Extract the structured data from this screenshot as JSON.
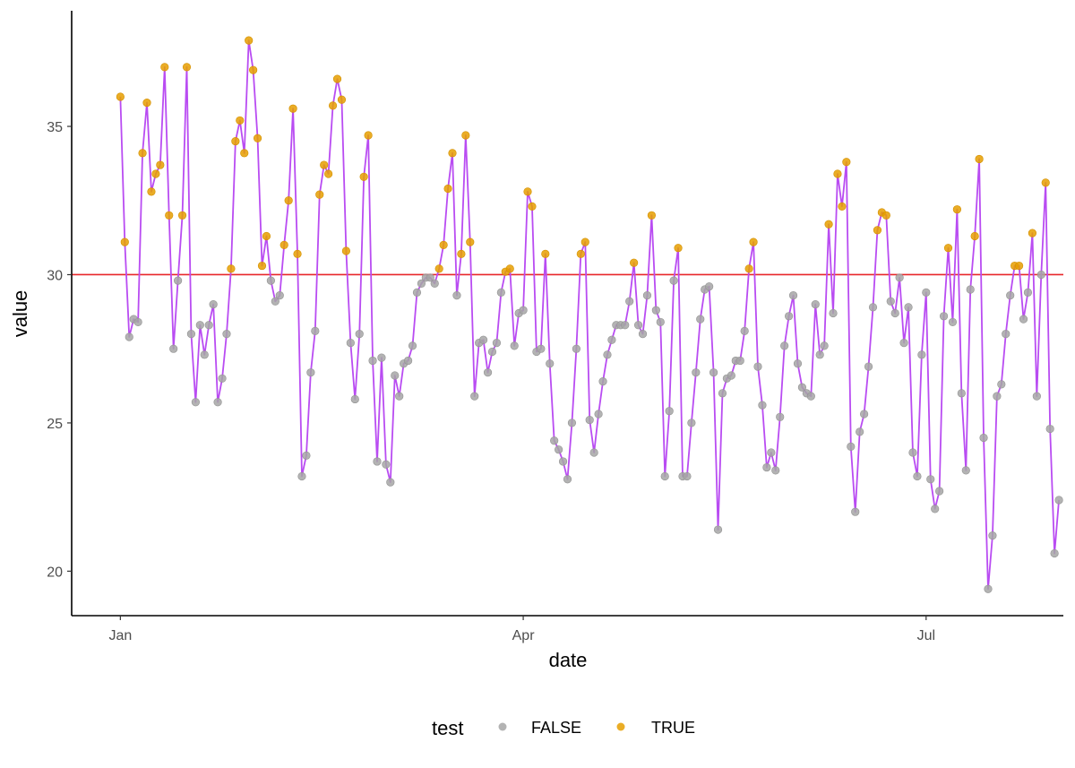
{
  "chart_data": {
    "type": "line",
    "xlabel": "date",
    "ylabel": "value",
    "x_ticks": [
      "Jan",
      "Apr",
      "Jul"
    ],
    "x_tick_dates": [
      "2000-01-01",
      "2000-04-01",
      "2000-07-01"
    ],
    "x_range": [
      "1999-12-21",
      "2000-08-01"
    ],
    "ylim": [
      18.5,
      38.9
    ],
    "y_ticks": [
      20,
      25,
      30,
      35
    ],
    "threshold": 30,
    "grid": false,
    "legend": {
      "title": "test",
      "position": "bottom",
      "entries": [
        {
          "label": "FALSE",
          "color": "#a6a6a6"
        },
        {
          "label": "TRUE",
          "color": "#e69f00"
        }
      ]
    },
    "colors": {
      "line": "#b94cf2",
      "threshold": "#e8272a",
      "false": "#a6a6a6",
      "true": "#e69f00"
    },
    "start_date": "2000-01-01",
    "values": [
      36.0,
      31.1,
      27.9,
      28.5,
      28.4,
      34.1,
      35.8,
      32.8,
      33.4,
      33.7,
      37.0,
      32.0,
      27.5,
      29.8,
      32.0,
      37.0,
      28.0,
      25.7,
      28.3,
      27.3,
      28.3,
      29.0,
      25.7,
      26.5,
      28.0,
      30.2,
      34.5,
      35.2,
      34.1,
      37.9,
      36.9,
      34.6,
      30.3,
      31.3,
      29.8,
      29.1,
      29.3,
      31.0,
      32.5,
      35.6,
      30.7,
      23.2,
      23.9,
      26.7,
      28.1,
      32.7,
      33.7,
      33.4,
      35.7,
      36.6,
      35.9,
      30.8,
      27.7,
      25.8,
      28.0,
      33.3,
      34.7,
      27.1,
      23.7,
      27.2,
      23.6,
      23.0,
      26.6,
      25.9,
      27.0,
      27.1,
      27.6,
      29.4,
      29.7,
      29.9,
      29.9,
      29.7,
      30.2,
      31.0,
      32.9,
      34.1,
      29.3,
      30.7,
      34.7,
      31.1,
      25.9,
      27.7,
      27.8,
      26.7,
      27.4,
      27.7,
      29.4,
      30.1,
      30.2,
      27.6,
      28.7,
      28.8,
      32.8,
      32.3,
      27.4,
      27.5,
      30.7,
      27.0,
      24.4,
      24.1,
      23.7,
      23.1,
      25.0,
      27.5,
      30.7,
      31.1,
      25.1,
      24.0,
      25.3,
      26.4,
      27.3,
      27.8,
      28.3,
      28.3,
      28.3,
      29.1,
      30.4,
      28.3,
      28.0,
      29.3,
      32.0,
      28.8,
      28.4,
      23.2,
      25.4,
      29.8,
      30.9,
      23.2,
      23.2,
      25.0,
      26.7,
      28.5,
      29.5,
      29.6,
      26.7,
      21.4,
      26.0,
      26.5,
      26.6,
      27.1,
      27.1,
      28.1,
      30.2,
      31.1,
      26.9,
      25.6,
      23.5,
      24.0,
      23.4,
      25.2,
      27.6,
      28.6,
      29.3,
      27.0,
      26.2,
      26.0,
      25.9,
      29.0,
      27.3,
      27.6,
      31.7,
      28.7,
      33.4,
      32.3,
      33.8,
      24.2,
      22.0,
      24.7,
      25.3,
      26.9,
      28.9,
      31.5,
      32.1,
      32.0,
      29.1,
      28.7,
      29.9,
      27.7,
      28.9,
      24.0,
      23.2,
      27.3,
      29.4,
      23.1,
      22.1,
      22.7,
      28.6,
      30.9,
      28.4,
      32.2,
      26.0,
      23.4,
      29.5,
      31.3,
      33.9,
      24.5,
      19.4,
      21.2,
      25.9,
      26.3,
      28.0,
      29.3,
      30.3,
      30.3,
      28.5,
      29.4,
      31.4,
      25.9,
      30.0,
      33.1,
      24.8,
      20.6,
      22.4
    ]
  }
}
